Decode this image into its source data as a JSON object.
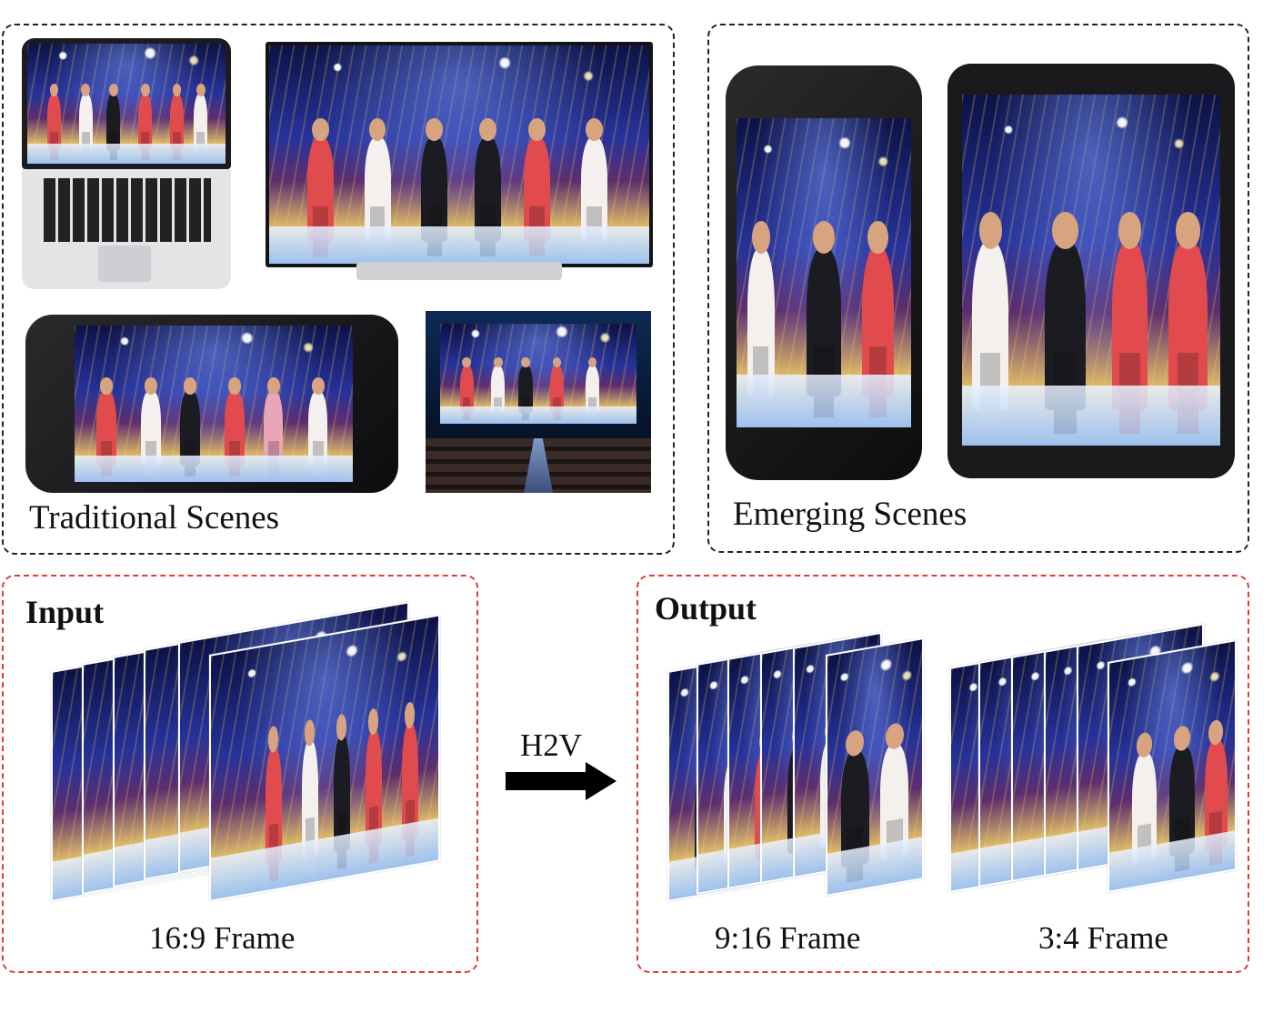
{
  "panels": {
    "traditional": {
      "label": "Traditional Scenes"
    },
    "emerging": {
      "label": "Emerging Scenes"
    },
    "input": {
      "title": "Input",
      "caption": "16:9 Frame"
    },
    "output": {
      "title": "Output",
      "caption_916": "9:16 Frame",
      "caption_34": "3:4 Frame"
    }
  },
  "arrow": {
    "label": "H2V"
  },
  "colors": {
    "panel_dash": "#222222",
    "io_dash": "#e23a3a",
    "arrow": "#000000"
  },
  "icons": [
    "laptop-icon",
    "television-icon",
    "landscape-phone-icon",
    "cinema-screen-icon",
    "portrait-phone-icon",
    "tablet-icon",
    "right-arrow-icon"
  ]
}
